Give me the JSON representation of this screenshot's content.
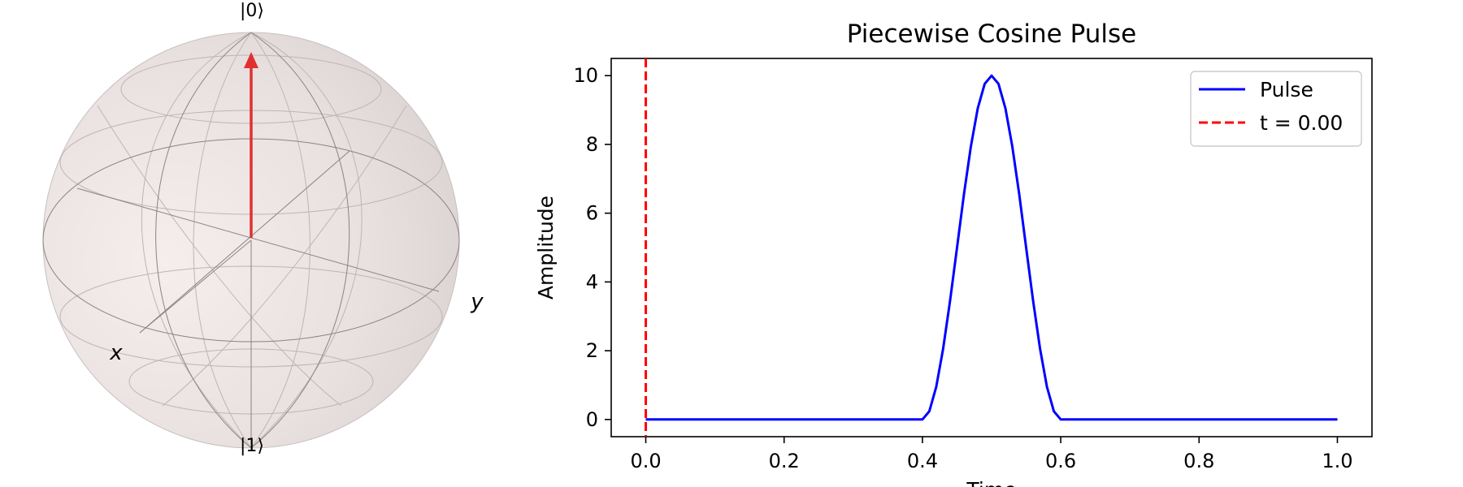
{
  "bloch": {
    "north_label": "|0⟩",
    "south_label": "|1⟩",
    "x_label": "x",
    "y_label": "y",
    "vector_color": "#e03030",
    "vector_state": "|0⟩"
  },
  "chart_data": {
    "type": "line",
    "title": "Piecewise Cosine Pulse",
    "xlabel": "Time",
    "ylabel": "Amplitude",
    "xlim": [
      -0.05,
      1.05
    ],
    "ylim": [
      -0.5,
      10.5
    ],
    "xticks": [
      0.0,
      0.2,
      0.4,
      0.6,
      0.8,
      1.0
    ],
    "xtick_labels": [
      "0.0",
      "0.2",
      "0.4",
      "0.6",
      "0.8",
      "1.0"
    ],
    "yticks": [
      0,
      2,
      4,
      6,
      8,
      10
    ],
    "ytick_labels": [
      "0",
      "2",
      "4",
      "6",
      "8",
      "10"
    ],
    "legend_position": "top-right",
    "series": [
      {
        "name": "Pulse",
        "color": "#0000ff",
        "style": "solid",
        "x": [
          0.0,
          0.1,
          0.2,
          0.3,
          0.39,
          0.4,
          0.41,
          0.42,
          0.43,
          0.44,
          0.45,
          0.46,
          0.47,
          0.48,
          0.49,
          0.5,
          0.51,
          0.52,
          0.53,
          0.54,
          0.55,
          0.56,
          0.57,
          0.58,
          0.59,
          0.6,
          0.61,
          0.7,
          0.8,
          0.9,
          1.0
        ],
        "y": [
          0,
          0,
          0,
          0,
          0,
          0,
          0.24,
          0.95,
          2.06,
          3.45,
          5.0,
          6.55,
          7.94,
          9.05,
          9.76,
          10.0,
          9.76,
          9.05,
          7.94,
          6.55,
          5.0,
          3.45,
          2.06,
          0.95,
          0.24,
          0,
          0,
          0,
          0,
          0,
          0
        ]
      },
      {
        "name": "t = 0.00",
        "color": "#ff0000",
        "style": "dashed",
        "vertical_x": 0.0
      }
    ]
  }
}
